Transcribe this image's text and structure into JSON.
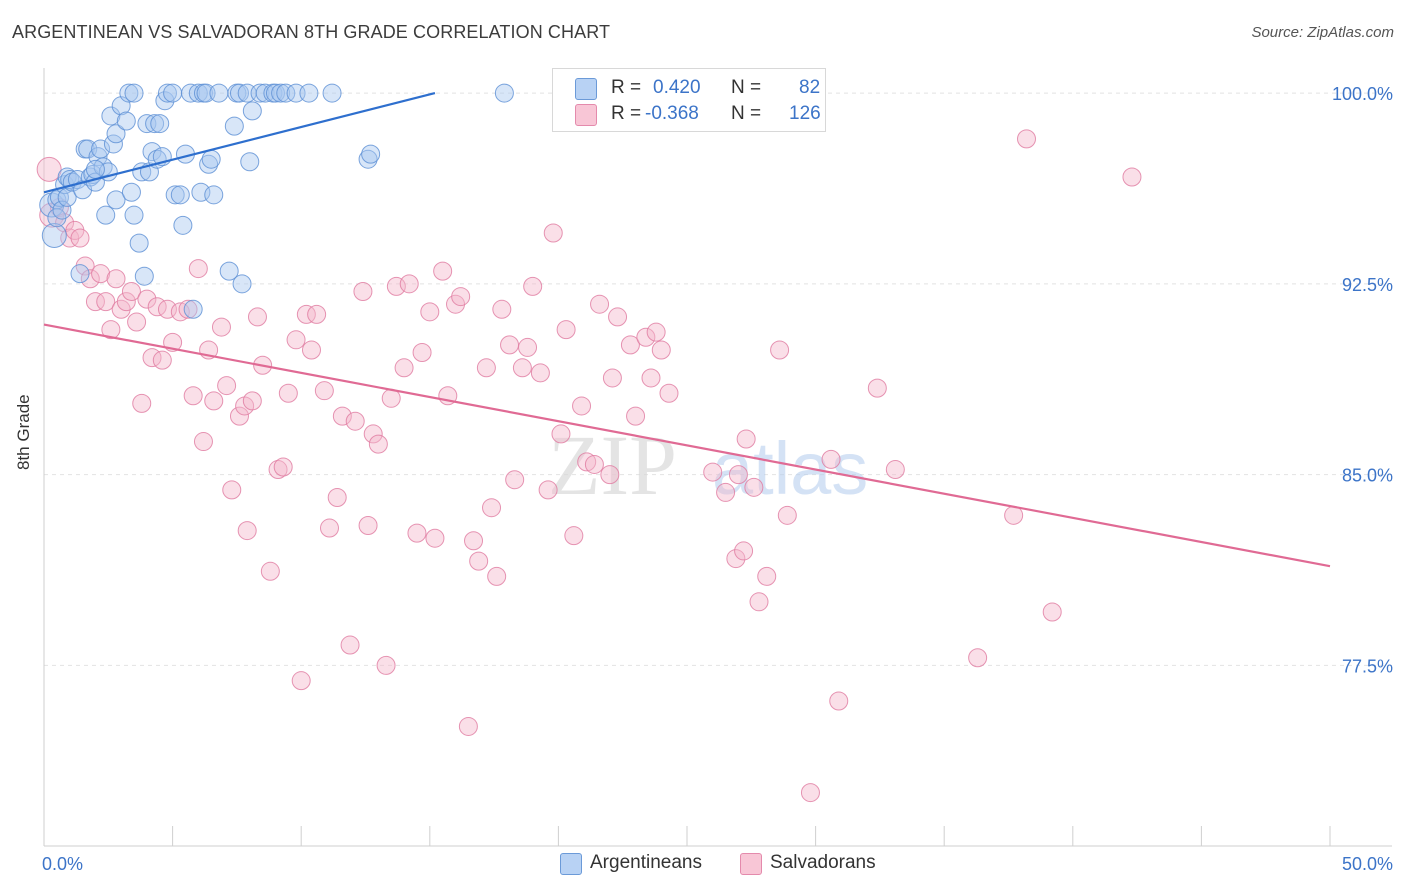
{
  "header": {
    "title": "ARGENTINEAN VS SALVADORAN 8TH GRADE CORRELATION CHART",
    "source": "Source: ZipAtlas.com"
  },
  "legend": {
    "argentineans": {
      "r_label": "R =",
      "r_value": "0.420",
      "n_label": "N =",
      "n_value": "82"
    },
    "salvadorans": {
      "r_label": "R =",
      "r_value": "-0.368",
      "n_label": "N =",
      "n_value": "126"
    }
  },
  "watermark": {
    "zip": "ZIP",
    "atlas": "atlas"
  },
  "colors": {
    "blue_fill": "#a8c8f0",
    "blue_stroke": "#5b8fd4",
    "blue_line": "#2e6fce",
    "pink_fill": "#f5b8cc",
    "pink_stroke": "#e07aa0",
    "pink_line": "#e06a94",
    "tick_label": "#3c74c8"
  },
  "chart_data": {
    "type": "scatter",
    "title": "ARGENTINEAN VS SALVADORAN 8TH GRADE CORRELATION CHART",
    "ylabel": "8th Grade",
    "xlim": [
      0,
      50
    ],
    "ylim": [
      70.4,
      101.3
    ],
    "x_tick_labels": [
      "0.0%",
      "50.0%"
    ],
    "y_ticks": [
      100.0,
      92.5,
      85.0,
      77.5
    ],
    "y_tick_labels": [
      "100.0%",
      "92.5%",
      "85.0%",
      "77.5%"
    ],
    "grid": "horizontal dashed",
    "legend_position": "top-center",
    "series": [
      {
        "name": "Argentineans",
        "r": 0.42,
        "n": 82,
        "trend": {
          "x": [
            0,
            15.2
          ],
          "y": [
            96.1,
            100.0
          ]
        },
        "points": [
          [
            0.3,
            95.6
          ],
          [
            0.4,
            94.4
          ],
          [
            0.5,
            95.8
          ],
          [
            0.5,
            95.1
          ],
          [
            0.6,
            95.9
          ],
          [
            0.7,
            95.4
          ],
          [
            0.8,
            96.4
          ],
          [
            0.9,
            96.7
          ],
          [
            0.9,
            95.9
          ],
          [
            1.0,
            96.6
          ],
          [
            1.1,
            96.5
          ],
          [
            1.3,
            96.6
          ],
          [
            1.4,
            92.9
          ],
          [
            1.5,
            96.2
          ],
          [
            1.6,
            97.8
          ],
          [
            1.7,
            97.8
          ],
          [
            1.8,
            96.7
          ],
          [
            1.9,
            96.8
          ],
          [
            2.0,
            96.5
          ],
          [
            2.1,
            97.5
          ],
          [
            2.2,
            97.8
          ],
          [
            2.3,
            97.1
          ],
          [
            2.4,
            95.2
          ],
          [
            2.5,
            96.9
          ],
          [
            2.6,
            99.1
          ],
          [
            2.7,
            98.0
          ],
          [
            2.8,
            98.4
          ],
          [
            2.8,
            95.8
          ],
          [
            3.0,
            99.5
          ],
          [
            3.2,
            98.9
          ],
          [
            3.3,
            100.0
          ],
          [
            3.4,
            96.1
          ],
          [
            3.5,
            95.2
          ],
          [
            3.7,
            94.1
          ],
          [
            3.8,
            96.9
          ],
          [
            3.9,
            92.8
          ],
          [
            4.0,
            98.8
          ],
          [
            4.1,
            96.9
          ],
          [
            4.2,
            97.7
          ],
          [
            4.3,
            98.8
          ],
          [
            4.4,
            97.4
          ],
          [
            4.6,
            97.5
          ],
          [
            4.7,
            99.7
          ],
          [
            4.8,
            100.0
          ],
          [
            5.0,
            100.0
          ],
          [
            5.1,
            96.0
          ],
          [
            5.3,
            96.0
          ],
          [
            5.4,
            94.8
          ],
          [
            5.5,
            97.6
          ],
          [
            5.7,
            100.0
          ],
          [
            5.8,
            91.5
          ],
          [
            6.0,
            100.0
          ],
          [
            6.1,
            96.1
          ],
          [
            6.2,
            100.0
          ],
          [
            6.3,
            100.0
          ],
          [
            6.4,
            97.2
          ],
          [
            6.5,
            97.4
          ],
          [
            6.6,
            96.0
          ],
          [
            6.8,
            100.0
          ],
          [
            7.2,
            93.0
          ],
          [
            7.4,
            98.7
          ],
          [
            7.5,
            100.0
          ],
          [
            7.6,
            100.0
          ],
          [
            7.7,
            92.5
          ],
          [
            7.9,
            100.0
          ],
          [
            8.0,
            97.3
          ],
          [
            8.1,
            99.3
          ],
          [
            8.4,
            100.0
          ],
          [
            8.6,
            100.0
          ],
          [
            8.9,
            100.0
          ],
          [
            9.0,
            100.0
          ],
          [
            9.2,
            100.0
          ],
          [
            9.4,
            100.0
          ],
          [
            9.8,
            100.0
          ],
          [
            10.3,
            100.0
          ],
          [
            11.2,
            100.0
          ],
          [
            12.6,
            97.4
          ],
          [
            12.7,
            97.6
          ],
          [
            17.9,
            100.0
          ],
          [
            3.5,
            100.0
          ],
          [
            4.5,
            98.8
          ],
          [
            2.0,
            97.0
          ]
        ]
      },
      {
        "name": "Salvadorans",
        "r": -0.368,
        "n": 126,
        "trend": {
          "x": [
            0,
            50
          ],
          "y": [
            90.9,
            81.4
          ]
        },
        "points": [
          [
            0.2,
            97.0
          ],
          [
            0.3,
            95.2
          ],
          [
            0.6,
            95.5
          ],
          [
            0.8,
            94.9
          ],
          [
            1.0,
            94.3
          ],
          [
            1.2,
            94.6
          ],
          [
            1.4,
            94.3
          ],
          [
            1.6,
            93.2
          ],
          [
            1.8,
            92.7
          ],
          [
            2.0,
            91.8
          ],
          [
            2.2,
            92.9
          ],
          [
            2.4,
            91.8
          ],
          [
            2.6,
            90.7
          ],
          [
            2.8,
            92.7
          ],
          [
            3.0,
            91.5
          ],
          [
            3.2,
            91.8
          ],
          [
            3.4,
            92.2
          ],
          [
            3.6,
            91.0
          ],
          [
            3.8,
            87.8
          ],
          [
            4.0,
            91.9
          ],
          [
            4.2,
            89.6
          ],
          [
            4.4,
            91.6
          ],
          [
            4.6,
            89.5
          ],
          [
            4.8,
            91.5
          ],
          [
            5.0,
            90.2
          ],
          [
            5.3,
            91.4
          ],
          [
            5.6,
            91.5
          ],
          [
            5.8,
            88.1
          ],
          [
            6.0,
            93.1
          ],
          [
            6.2,
            86.3
          ],
          [
            6.4,
            89.9
          ],
          [
            6.6,
            87.9
          ],
          [
            6.9,
            90.8
          ],
          [
            7.1,
            88.5
          ],
          [
            7.3,
            84.4
          ],
          [
            7.6,
            87.3
          ],
          [
            7.8,
            87.7
          ],
          [
            7.9,
            82.8
          ],
          [
            8.1,
            87.9
          ],
          [
            8.3,
            91.2
          ],
          [
            8.5,
            89.3
          ],
          [
            8.8,
            81.2
          ],
          [
            9.1,
            85.2
          ],
          [
            9.3,
            85.3
          ],
          [
            9.5,
            88.2
          ],
          [
            9.8,
            90.3
          ],
          [
            10.0,
            76.9
          ],
          [
            10.2,
            91.3
          ],
          [
            10.4,
            89.9
          ],
          [
            10.6,
            91.3
          ],
          [
            10.9,
            88.3
          ],
          [
            11.1,
            82.9
          ],
          [
            11.4,
            84.1
          ],
          [
            11.6,
            87.3
          ],
          [
            11.9,
            78.3
          ],
          [
            12.1,
            87.1
          ],
          [
            12.4,
            92.2
          ],
          [
            12.6,
            83.0
          ],
          [
            12.8,
            86.6
          ],
          [
            13.0,
            86.2
          ],
          [
            13.3,
            77.5
          ],
          [
            13.5,
            88.0
          ],
          [
            13.7,
            92.4
          ],
          [
            14.0,
            89.2
          ],
          [
            14.2,
            92.5
          ],
          [
            14.5,
            82.7
          ],
          [
            14.7,
            89.8
          ],
          [
            15.0,
            91.4
          ],
          [
            15.2,
            82.5
          ],
          [
            15.5,
            93.0
          ],
          [
            15.7,
            88.1
          ],
          [
            16.0,
            91.7
          ],
          [
            16.2,
            92.0
          ],
          [
            16.5,
            75.1
          ],
          [
            16.7,
            82.4
          ],
          [
            16.9,
            81.6
          ],
          [
            17.2,
            89.2
          ],
          [
            17.4,
            83.7
          ],
          [
            17.6,
            81.0
          ],
          [
            17.8,
            91.5
          ],
          [
            18.1,
            90.1
          ],
          [
            18.3,
            84.8
          ],
          [
            18.6,
            89.2
          ],
          [
            18.8,
            90.0
          ],
          [
            19.0,
            92.4
          ],
          [
            19.3,
            89.0
          ],
          [
            19.6,
            84.4
          ],
          [
            19.8,
            94.5
          ],
          [
            20.1,
            86.6
          ],
          [
            20.3,
            90.7
          ],
          [
            20.6,
            82.6
          ],
          [
            20.9,
            87.7
          ],
          [
            21.1,
            85.5
          ],
          [
            21.4,
            85.4
          ],
          [
            21.6,
            91.7
          ],
          [
            22.0,
            85.0
          ],
          [
            22.1,
            88.8
          ],
          [
            22.3,
            91.2
          ],
          [
            22.8,
            90.1
          ],
          [
            23.0,
            87.3
          ],
          [
            23.4,
            90.4
          ],
          [
            23.6,
            88.8
          ],
          [
            23.8,
            90.6
          ],
          [
            24.0,
            89.9
          ],
          [
            24.3,
            88.2
          ],
          [
            26.0,
            85.1
          ],
          [
            26.5,
            84.3
          ],
          [
            26.9,
            81.7
          ],
          [
            27.0,
            85.0
          ],
          [
            27.2,
            82.0
          ],
          [
            27.6,
            84.5
          ],
          [
            27.8,
            80.0
          ],
          [
            28.1,
            81.0
          ],
          [
            28.6,
            89.9
          ],
          [
            28.9,
            83.4
          ],
          [
            30.6,
            85.6
          ],
          [
            30.9,
            76.1
          ],
          [
            32.4,
            88.4
          ],
          [
            33.1,
            85.2
          ],
          [
            36.3,
            77.8
          ],
          [
            37.7,
            83.4
          ],
          [
            38.2,
            98.2
          ],
          [
            39.2,
            79.6
          ],
          [
            42.3,
            96.7
          ],
          [
            29.8,
            72.5
          ],
          [
            27.3,
            86.4
          ]
        ]
      }
    ]
  }
}
